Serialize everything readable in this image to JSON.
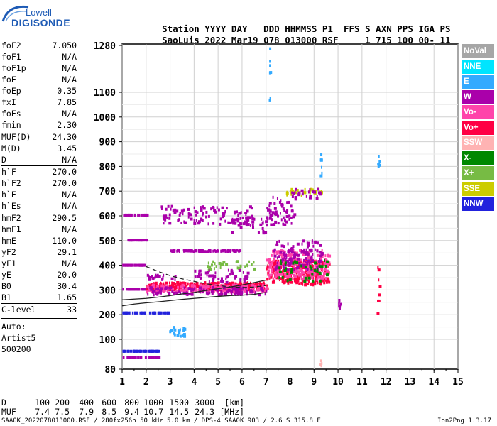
{
  "logo": {
    "line1": "Lowell",
    "line2": "DIGISONDE"
  },
  "header": {
    "row1": [
      "Station",
      "YYYY",
      "DAY",
      "DDD",
      "HHMMSS",
      "P1",
      "FFS",
      "S",
      "AXN",
      "PPS",
      "IGA",
      "PS"
    ],
    "row2": [
      "SaoLuis",
      "2022",
      "Mar19",
      "078",
      "013000",
      "RSF",
      "1",
      "715",
      "100",
      "00-",
      "11"
    ]
  },
  "params": [
    {
      "name": "foF2",
      "value": "7.050"
    },
    {
      "name": "foF1",
      "value": "N/A"
    },
    {
      "name": "foF1p",
      "value": "N/A"
    },
    {
      "name": "foE",
      "value": "N/A"
    },
    {
      "name": "foEp",
      "value": "0.35"
    },
    {
      "name": "fxI",
      "value": "7.85"
    },
    {
      "name": "foEs",
      "value": "N/A"
    },
    {
      "name": "fmin",
      "value": "2.30"
    },
    {
      "name": "MUF(D)",
      "value": "24.30",
      "sep": true
    },
    {
      "name": "M(D)",
      "value": "3.45"
    },
    {
      "name": "D",
      "value": "N/A"
    },
    {
      "name": "h`F",
      "value": "270.0",
      "sep": true
    },
    {
      "name": "h`F2",
      "value": "270.0"
    },
    {
      "name": "h`E",
      "value": "N/A"
    },
    {
      "name": "h`Es",
      "value": "N/A"
    },
    {
      "name": "hmF2",
      "value": "290.5",
      "sep": true
    },
    {
      "name": "hmF1",
      "value": "N/A"
    },
    {
      "name": "hmE",
      "value": "110.0"
    },
    {
      "name": "yF2",
      "value": "29.1"
    },
    {
      "name": "yF1",
      "value": "N/A"
    },
    {
      "name": "yE",
      "value": "20.0"
    },
    {
      "name": "B0",
      "value": "30.4"
    },
    {
      "name": "B1",
      "value": "1.65"
    },
    {
      "name": "C-level",
      "value": "33",
      "sep": true
    }
  ],
  "auto": {
    "line1": "Auto:",
    "line2": "Artist5",
    "line3": "500200"
  },
  "legend": [
    {
      "label": "NoVal",
      "color": "#a6a6a6"
    },
    {
      "label": "NNE",
      "color": "#00e5ff"
    },
    {
      "label": "E",
      "color": "#33aaff"
    },
    {
      "label": "W",
      "color": "#aa00aa"
    },
    {
      "label": "Vo-",
      "color": "#ff44aa"
    },
    {
      "label": "Vo+",
      "color": "#ff0044"
    },
    {
      "label": "SSW",
      "color": "#ffb3b3"
    },
    {
      "label": "X-",
      "color": "#008800"
    },
    {
      "label": "X+",
      "color": "#77bb44"
    },
    {
      "label": "SSE",
      "color": "#cccc00"
    },
    {
      "label": "NNW",
      "color": "#2222dd"
    }
  ],
  "bottom": {
    "d_label": "D",
    "d_values": [
      "100",
      "200",
      "400",
      "600",
      "800",
      "1000",
      "1500",
      "3000",
      "[km]"
    ],
    "muf_label": "MUF",
    "muf_values": [
      "7.4",
      "7.5",
      "7.9",
      "8.5",
      "9.4",
      "10.7",
      "14.5",
      "24.3",
      "[MHz]"
    ],
    "footer": "SAA0K_2022078013000.RSF / 280fx256h 50 kHz 5.0 km / DPS-4 SAA0K 903 / 2.6 S 315.8 E",
    "footer_right": "Ion2Png 1.3.17"
  },
  "chart_data": {
    "type": "scatter",
    "x_ticks": [
      1,
      2,
      3,
      4,
      5,
      6,
      7,
      8,
      9,
      10,
      11,
      12,
      13,
      14,
      15
    ],
    "y_ticks": [
      80,
      100,
      200,
      300,
      400,
      500,
      600,
      700,
      800,
      900,
      1000,
      1100,
      1280
    ],
    "xlim": [
      1,
      15
    ],
    "ylim": [
      80,
      1280
    ],
    "grid": true,
    "y_scale": "segmented",
    "legend_position": "right",
    "profile_curve": {
      "x": [
        1.0,
        1.5,
        2.0,
        2.5,
        3.0,
        3.5,
        4.0,
        4.5,
        5.0,
        5.5,
        6.0,
        6.5,
        7.0
      ],
      "y": [
        236,
        243,
        248,
        252,
        257,
        262,
        266,
        270,
        274,
        277,
        279,
        282,
        290
      ]
    },
    "trace_curve": {
      "x": [
        1.0,
        1.5,
        2.0,
        2.5,
        3.0,
        3.5,
        4.0,
        4.5,
        5.0,
        5.5,
        6.0,
        6.5,
        7.0
      ],
      "y": [
        260,
        263,
        266,
        271,
        277,
        284,
        290,
        298,
        305,
        312,
        320,
        330,
        340
      ]
    },
    "dashed_curve": {
      "x": [
        2.0,
        2.5,
        3.0,
        3.5,
        4.0,
        4.5,
        5.0,
        5.5,
        6.0,
        6.5,
        7.0
      ],
      "y": [
        395,
        375,
        358,
        345,
        335,
        325,
        318,
        313,
        310,
        312,
        318
      ]
    },
    "clusters": [
      {
        "x0": 1.0,
        "x1": 2.0,
        "y0": 303,
        "y1": 303,
        "color": "#aa00aa",
        "n": 30
      },
      {
        "x0": 1.0,
        "x1": 2.0,
        "y0": 400,
        "y1": 400,
        "color": "#aa00aa",
        "n": 26
      },
      {
        "x0": 1.0,
        "x1": 2.0,
        "y0": 502,
        "y1": 502,
        "color": "#aa00aa",
        "n": 24
      },
      {
        "x0": 1.0,
        "x1": 2.0,
        "y0": 603,
        "y1": 603,
        "color": "#aa00aa",
        "n": 20
      },
      {
        "x0": 1.0,
        "x1": 2.9,
        "y0": 207,
        "y1": 207,
        "color": "#2222dd",
        "n": 40
      },
      {
        "x0": 1.0,
        "x1": 2.5,
        "y0": 92,
        "y1": 92,
        "color": "#2222dd",
        "n": 40
      },
      {
        "x0": 1.0,
        "x1": 2.5,
        "y0": 88,
        "y1": 88,
        "color": "#aa00aa",
        "n": 20
      },
      {
        "x0": 2.9,
        "x1": 3.6,
        "y0": 110,
        "y1": 150,
        "color": "#33aaff",
        "n": 18
      },
      {
        "x0": 2.0,
        "x1": 7.0,
        "y0": 300,
        "y1": 330,
        "color": "#ff0044",
        "n": 260
      },
      {
        "x0": 2.0,
        "x1": 7.0,
        "y0": 290,
        "y1": 320,
        "color": "#ff44aa",
        "n": 180
      },
      {
        "x0": 2.0,
        "x1": 7.0,
        "y0": 280,
        "y1": 310,
        "color": "#aa00aa",
        "n": 120
      },
      {
        "x0": 7.0,
        "x1": 9.6,
        "y0": 320,
        "y1": 420,
        "color": "#ff0044",
        "n": 260
      },
      {
        "x0": 7.0,
        "x1": 9.6,
        "y0": 340,
        "y1": 460,
        "color": "#ff44aa",
        "n": 200
      },
      {
        "x0": 7.3,
        "x1": 9.3,
        "y0": 380,
        "y1": 500,
        "color": "#aa00aa",
        "n": 140
      },
      {
        "x0": 7.5,
        "x1": 9.5,
        "y0": 330,
        "y1": 420,
        "color": "#008800",
        "n": 40
      },
      {
        "x0": 3.0,
        "x1": 6.0,
        "y0": 455,
        "y1": 462,
        "color": "#aa00aa",
        "n": 80
      },
      {
        "x0": 2.6,
        "x1": 6.4,
        "y0": 565,
        "y1": 640,
        "color": "#aa00aa",
        "n": 110
      },
      {
        "x0": 5.5,
        "x1": 7.1,
        "y0": 530,
        "y1": 590,
        "color": "#aa00aa",
        "n": 30
      },
      {
        "x0": 7.0,
        "x1": 8.2,
        "y0": 560,
        "y1": 680,
        "color": "#aa00aa",
        "n": 60
      },
      {
        "x0": 7.8,
        "x1": 9.3,
        "y0": 680,
        "y1": 710,
        "color": "#cccc00",
        "n": 30
      },
      {
        "x0": 8.0,
        "x1": 9.3,
        "y0": 670,
        "y1": 710,
        "color": "#aa00aa",
        "n": 24
      },
      {
        "x0": 4.5,
        "x1": 6.5,
        "y0": 380,
        "y1": 420,
        "color": "#77bb44",
        "n": 30
      },
      {
        "x0": 4.0,
        "x1": 6.2,
        "y0": 330,
        "y1": 380,
        "color": "#aa00aa",
        "n": 50
      },
      {
        "x0": 2.0,
        "x1": 3.2,
        "y0": 340,
        "y1": 360,
        "color": "#aa00aa",
        "n": 20
      },
      {
        "x0": 10.0,
        "x1": 10.1,
        "y0": 220,
        "y1": 260,
        "color": "#aa00aa",
        "n": 8
      },
      {
        "x0": 11.6,
        "x1": 11.7,
        "y0": 180,
        "y1": 400,
        "color": "#ff0044",
        "n": 8
      },
      {
        "x0": 11.6,
        "x1": 11.7,
        "y0": 790,
        "y1": 850,
        "color": "#33aaff",
        "n": 5
      },
      {
        "x0": 7.1,
        "x1": 7.15,
        "y0": 1020,
        "y1": 1280,
        "color": "#33aaff",
        "n": 7
      },
      {
        "x0": 9.2,
        "x1": 9.3,
        "y0": 760,
        "y1": 880,
        "color": "#33aaff",
        "n": 6
      },
      {
        "x0": 9.2,
        "x1": 9.3,
        "y0": 82,
        "y1": 86,
        "color": "#ffb3b3",
        "n": 4
      }
    ]
  }
}
